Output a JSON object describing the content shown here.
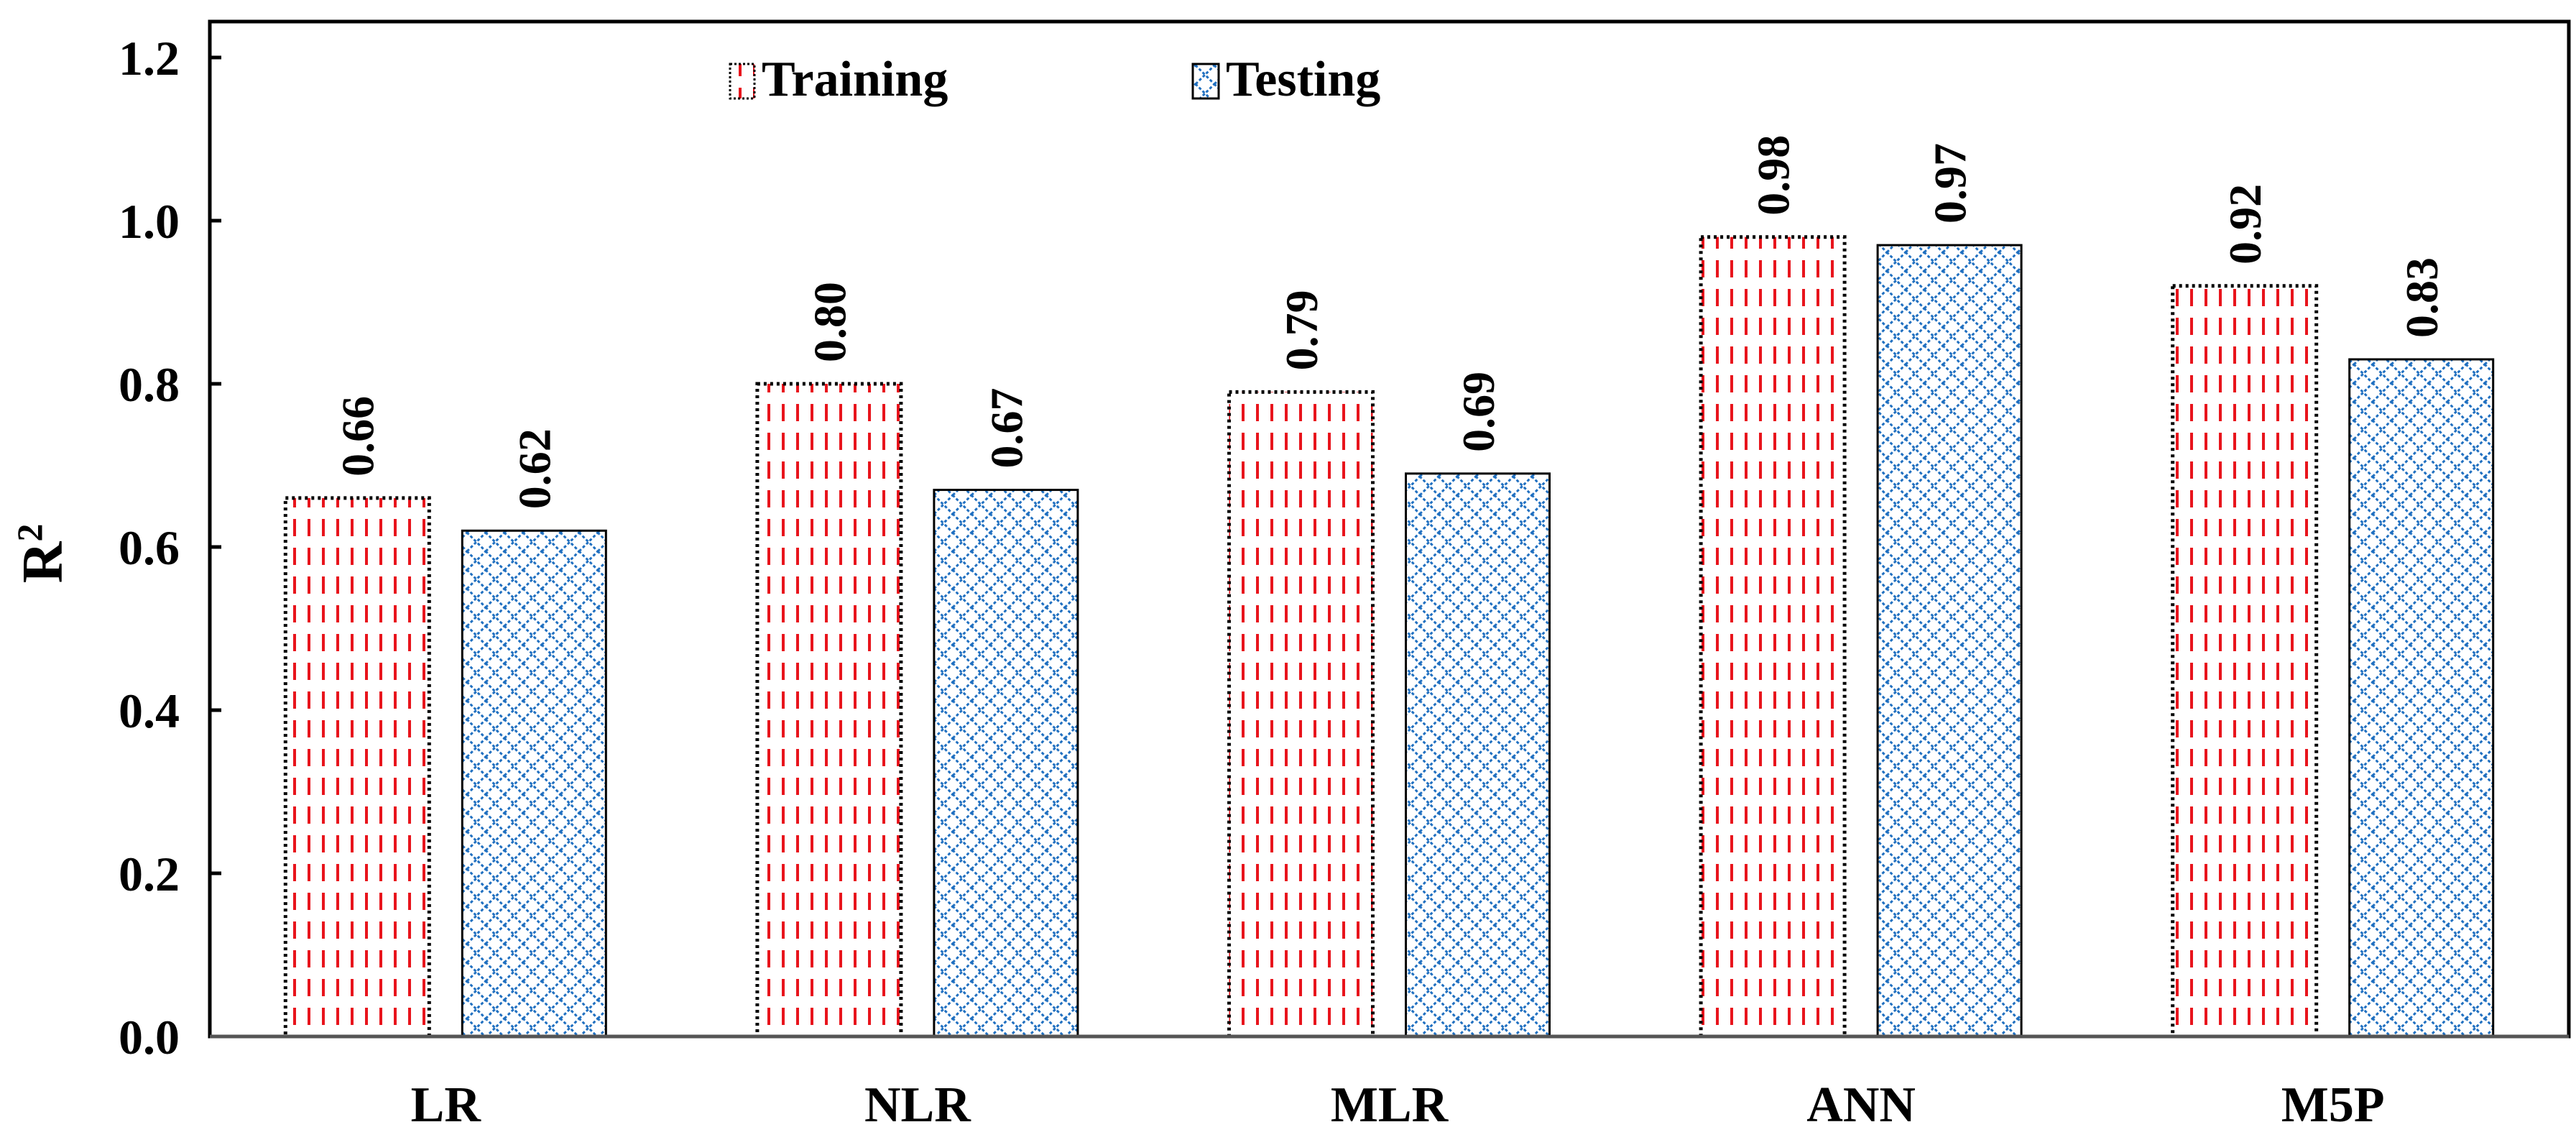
{
  "chart_data": {
    "type": "bar",
    "title": "",
    "xlabel": "",
    "ylabel": "R",
    "ylabel_superscript": "2",
    "categories": [
      "LR",
      "NLR",
      "MLR",
      "ANN",
      "M5P"
    ],
    "series": [
      {
        "name": "Training",
        "values": [
          0.66,
          0.8,
          0.79,
          0.98,
          0.92
        ],
        "labels": [
          "0.66",
          "0.80",
          "0.79",
          "0.98",
          "0.92"
        ],
        "pattern": "red-dashed-vertical",
        "color": "#e8141c",
        "border": "dotted-black"
      },
      {
        "name": "Testing",
        "values": [
          0.62,
          0.67,
          0.69,
          0.97,
          0.83
        ],
        "labels": [
          "0.62",
          "0.67",
          "0.69",
          "0.97",
          "0.83"
        ],
        "pattern": "blue-diamond-lattice",
        "color": "#1f6fc0",
        "border": "solid-black"
      }
    ],
    "ylim": [
      0.0,
      1.2
    ],
    "yticks": [
      0.0,
      0.2,
      0.4,
      0.6,
      0.8,
      1.0,
      1.2
    ],
    "ytick_labels": [
      "0.0",
      "0.2",
      "0.4",
      "0.6",
      "0.8",
      "1.0",
      "1.2"
    ],
    "grid": false,
    "legend_position": "top-left"
  }
}
